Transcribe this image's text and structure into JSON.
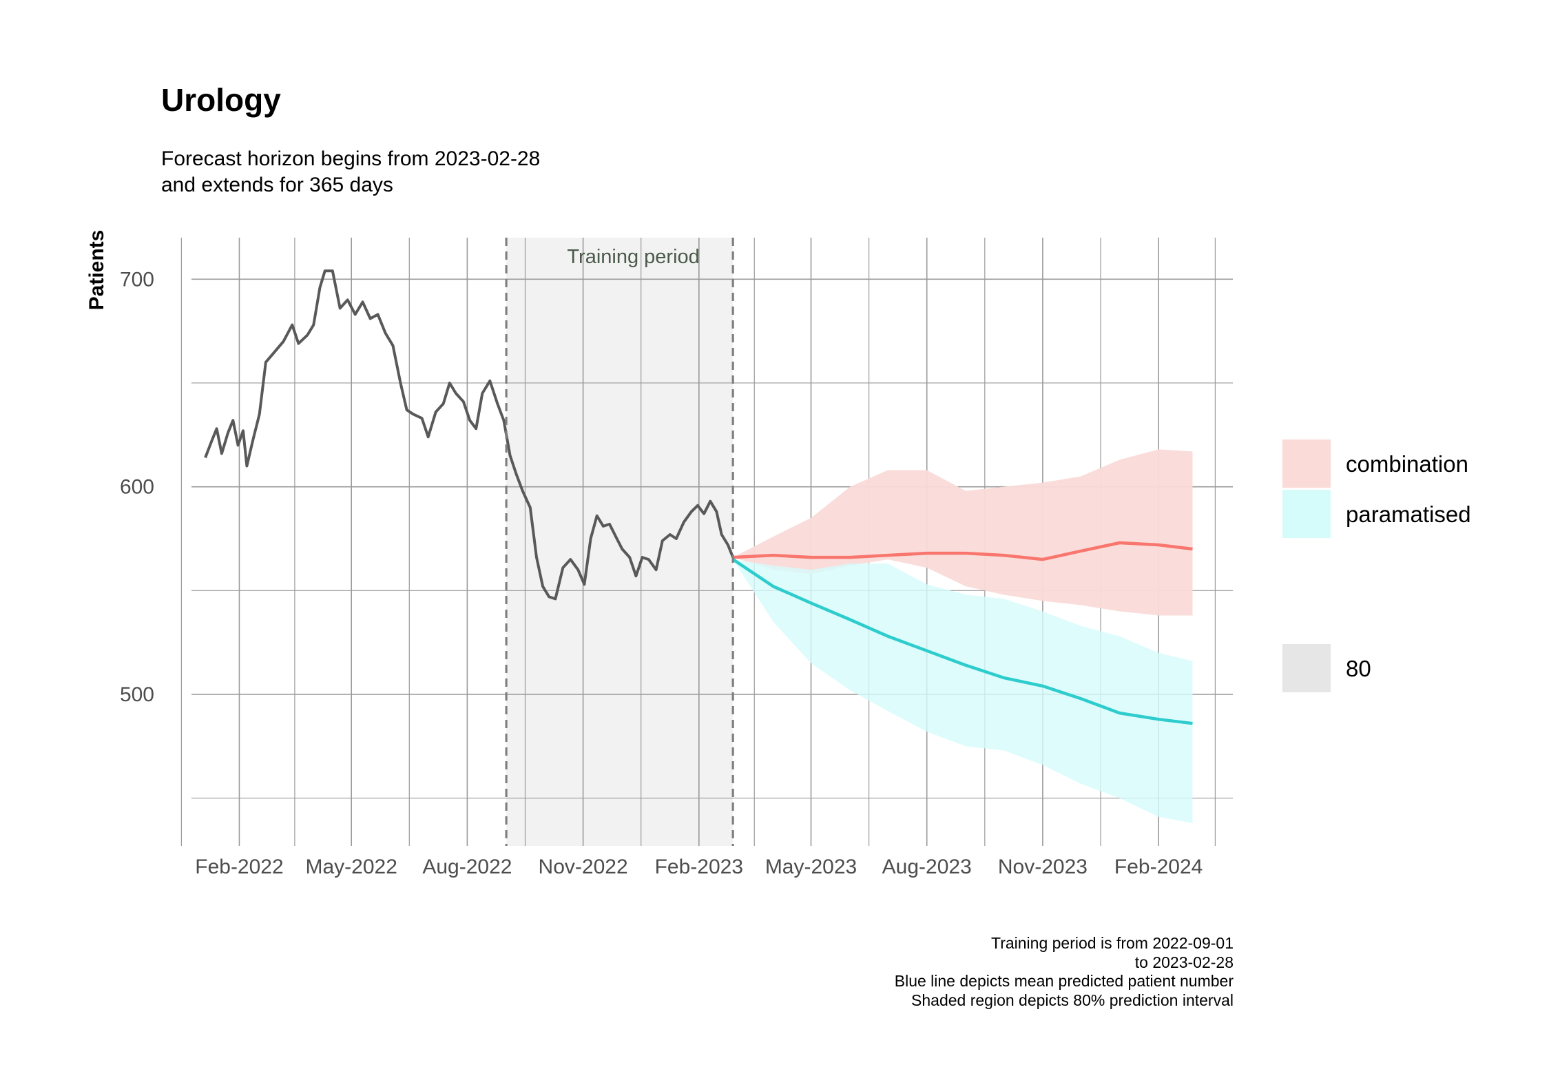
{
  "header": {
    "title": "Urology",
    "subtitle_lines": [
      "Forecast horizon begins from 2023-02-28",
      "and extends for 365 days"
    ]
  },
  "caption_lines": [
    "Training period is from 2022-09-01",
    "to 2023-02-28",
    "Blue line depicts mean predicted patient number",
    "Shaded region depicts 80% prediction interval"
  ],
  "chart_data": {
    "type": "line",
    "title": "Urology",
    "ylabel": "Patients",
    "xlabel": "",
    "xlim": [
      "2021-12-25",
      "2024-03-31"
    ],
    "ylim": [
      427,
      720
    ],
    "x_ticks": [
      {
        "date": "2022-02-01",
        "label": "Feb-2022"
      },
      {
        "date": "2022-05-01",
        "label": "May-2022"
      },
      {
        "date": "2022-08-01",
        "label": "Aug-2022"
      },
      {
        "date": "2022-11-01",
        "label": "Nov-2022"
      },
      {
        "date": "2023-02-01",
        "label": "Feb-2023"
      },
      {
        "date": "2023-05-01",
        "label": "May-2023"
      },
      {
        "date": "2023-08-01",
        "label": "Aug-2023"
      },
      {
        "date": "2023-11-01",
        "label": "Nov-2023"
      },
      {
        "date": "2024-02-01",
        "label": "Feb-2024"
      }
    ],
    "y_ticks": [
      500,
      600,
      700
    ],
    "grid": true,
    "training_period": {
      "start": "2022-09-01",
      "end": "2023-02-28",
      "label": "Training period"
    },
    "observed": {
      "color": "#595959",
      "points": [
        [
          "2022-01-05",
          614
        ],
        [
          "2022-01-10",
          622
        ],
        [
          "2022-01-14",
          628
        ],
        [
          "2022-01-18",
          616
        ],
        [
          "2022-01-23",
          626
        ],
        [
          "2022-01-27",
          632
        ],
        [
          "2022-01-31",
          620
        ],
        [
          "2022-02-04",
          627
        ],
        [
          "2022-02-07",
          610
        ],
        [
          "2022-02-12",
          623
        ],
        [
          "2022-02-17",
          635
        ],
        [
          "2022-02-22",
          660
        ],
        [
          "2022-03-01",
          665
        ],
        [
          "2022-03-08",
          670
        ],
        [
          "2022-03-15",
          678
        ],
        [
          "2022-03-20",
          669
        ],
        [
          "2022-03-27",
          673
        ],
        [
          "2022-04-01",
          678
        ],
        [
          "2022-04-06",
          696
        ],
        [
          "2022-04-10",
          704
        ],
        [
          "2022-04-16",
          704
        ],
        [
          "2022-04-22",
          686
        ],
        [
          "2022-04-28",
          690
        ],
        [
          "2022-05-04",
          683
        ],
        [
          "2022-05-10",
          689
        ],
        [
          "2022-05-16",
          681
        ],
        [
          "2022-05-22",
          683
        ],
        [
          "2022-05-28",
          674
        ],
        [
          "2022-06-03",
          668
        ],
        [
          "2022-06-09",
          650
        ],
        [
          "2022-06-14",
          637
        ],
        [
          "2022-06-19",
          635
        ],
        [
          "2022-06-26",
          633
        ],
        [
          "2022-07-01",
          624
        ],
        [
          "2022-07-07",
          636
        ],
        [
          "2022-07-13",
          640
        ],
        [
          "2022-07-18",
          650
        ],
        [
          "2022-07-23",
          645
        ],
        [
          "2022-07-29",
          641
        ],
        [
          "2022-08-03",
          632
        ],
        [
          "2022-08-08",
          628
        ],
        [
          "2022-08-13",
          645
        ],
        [
          "2022-08-19",
          651
        ],
        [
          "2022-08-25",
          640
        ],
        [
          "2022-08-30",
          632
        ],
        [
          "2022-09-04",
          615
        ],
        [
          "2022-09-09",
          606
        ],
        [
          "2022-09-14",
          598
        ],
        [
          "2022-09-20",
          590
        ],
        [
          "2022-09-25",
          566
        ],
        [
          "2022-09-30",
          552
        ],
        [
          "2022-10-05",
          547
        ],
        [
          "2022-10-10",
          546
        ],
        [
          "2022-10-16",
          561
        ],
        [
          "2022-10-22",
          565
        ],
        [
          "2022-10-28",
          560
        ],
        [
          "2022-11-02",
          553
        ],
        [
          "2022-11-07",
          575
        ],
        [
          "2022-11-12",
          586
        ],
        [
          "2022-11-17",
          581
        ],
        [
          "2022-11-22",
          582
        ],
        [
          "2022-11-27",
          576
        ],
        [
          "2022-12-02",
          570
        ],
        [
          "2022-12-08",
          566
        ],
        [
          "2022-12-13",
          557
        ],
        [
          "2022-12-18",
          566
        ],
        [
          "2022-12-23",
          565
        ],
        [
          "2022-12-29",
          560
        ],
        [
          "2023-01-03",
          574
        ],
        [
          "2023-01-09",
          577
        ],
        [
          "2023-01-14",
          575
        ],
        [
          "2023-01-20",
          583
        ],
        [
          "2023-01-26",
          588
        ],
        [
          "2023-01-31",
          591
        ],
        [
          "2023-02-05",
          587
        ],
        [
          "2023-02-10",
          593
        ],
        [
          "2023-02-15",
          588
        ],
        [
          "2023-02-19",
          577
        ],
        [
          "2023-02-24",
          572
        ],
        [
          "2023-02-28",
          566
        ]
      ]
    },
    "series": [
      {
        "name": "combination",
        "color": "#F8766D",
        "band_color": "#FADBD8",
        "mean": [
          [
            "2023-02-28",
            566
          ],
          [
            "2023-04-01",
            567
          ],
          [
            "2023-05-01",
            566
          ],
          [
            "2023-06-01",
            566
          ],
          [
            "2023-07-01",
            567
          ],
          [
            "2023-08-01",
            568
          ],
          [
            "2023-09-01",
            568
          ],
          [
            "2023-10-01",
            567
          ],
          [
            "2023-11-01",
            565
          ],
          [
            "2023-12-01",
            569
          ],
          [
            "2024-01-01",
            573
          ],
          [
            "2024-02-01",
            572
          ],
          [
            "2024-02-28",
            570
          ]
        ],
        "lower": [
          [
            "2023-02-28",
            566
          ],
          [
            "2023-04-01",
            560
          ],
          [
            "2023-05-01",
            558
          ],
          [
            "2023-06-01",
            562
          ],
          [
            "2023-07-01",
            565
          ],
          [
            "2023-08-01",
            561
          ],
          [
            "2023-09-01",
            552
          ],
          [
            "2023-10-01",
            548
          ],
          [
            "2023-11-01",
            545
          ],
          [
            "2023-12-01",
            543
          ],
          [
            "2024-01-01",
            540
          ],
          [
            "2024-02-01",
            538
          ],
          [
            "2024-02-28",
            538
          ]
        ],
        "upper": [
          [
            "2023-02-28",
            566
          ],
          [
            "2023-04-01",
            576
          ],
          [
            "2023-05-01",
            585
          ],
          [
            "2023-06-01",
            600
          ],
          [
            "2023-07-01",
            608
          ],
          [
            "2023-08-01",
            608
          ],
          [
            "2023-09-01",
            598
          ],
          [
            "2023-10-01",
            600
          ],
          [
            "2023-11-01",
            602
          ],
          [
            "2023-12-01",
            605
          ],
          [
            "2024-01-01",
            613
          ],
          [
            "2024-02-01",
            618
          ],
          [
            "2024-02-28",
            617
          ]
        ]
      },
      {
        "name": "paramatised",
        "color": "#2ECCCC",
        "band_color": "#D6FBFB",
        "mean": [
          [
            "2023-02-28",
            565
          ],
          [
            "2023-04-01",
            552
          ],
          [
            "2023-05-01",
            544
          ],
          [
            "2023-06-01",
            536
          ],
          [
            "2023-07-01",
            528
          ],
          [
            "2023-08-01",
            521
          ],
          [
            "2023-09-01",
            514
          ],
          [
            "2023-10-01",
            508
          ],
          [
            "2023-11-01",
            504
          ],
          [
            "2023-12-01",
            498
          ],
          [
            "2024-01-01",
            491
          ],
          [
            "2024-02-01",
            488
          ],
          [
            "2024-02-28",
            486
          ]
        ],
        "lower": [
          [
            "2023-02-28",
            565
          ],
          [
            "2023-04-01",
            535
          ],
          [
            "2023-05-01",
            515
          ],
          [
            "2023-06-01",
            502
          ],
          [
            "2023-07-01",
            492
          ],
          [
            "2023-08-01",
            482
          ],
          [
            "2023-09-01",
            475
          ],
          [
            "2023-10-01",
            473
          ],
          [
            "2023-11-01",
            466
          ],
          [
            "2023-12-01",
            457
          ],
          [
            "2024-01-01",
            450
          ],
          [
            "2024-02-01",
            441
          ],
          [
            "2024-02-28",
            438
          ]
        ],
        "upper": [
          [
            "2023-02-28",
            565
          ],
          [
            "2023-04-01",
            562
          ],
          [
            "2023-05-01",
            560
          ],
          [
            "2023-06-01",
            563
          ],
          [
            "2023-07-01",
            563
          ],
          [
            "2023-08-01",
            553
          ],
          [
            "2023-09-01",
            548
          ],
          [
            "2023-10-01",
            546
          ],
          [
            "2023-11-01",
            540
          ],
          [
            "2023-12-01",
            533
          ],
          [
            "2024-01-01",
            528
          ],
          [
            "2024-02-01",
            520
          ],
          [
            "2024-02-28",
            516
          ]
        ]
      }
    ],
    "legend": {
      "placement": "right",
      "items": [
        {
          "label": "combination",
          "color": "#FADBD8"
        },
        {
          "label": "paramatised",
          "color": "#D6FBFB"
        }
      ],
      "level_items": [
        {
          "label": "80",
          "color": "#E6E6E6"
        }
      ]
    }
  }
}
